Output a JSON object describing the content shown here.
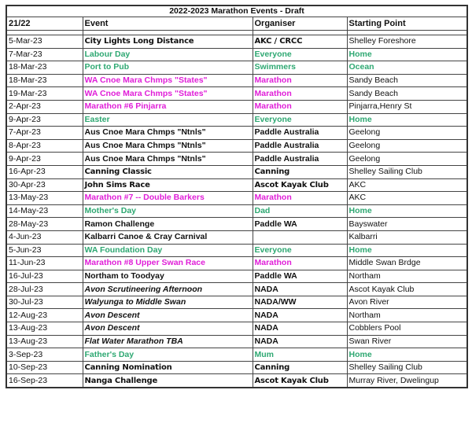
{
  "title": "2022-2023 Marathon Events - Draft",
  "headers": [
    "21/22",
    "Event",
    "Organiser",
    "Starting Point"
  ],
  "colors": {
    "holiday": "#2ea872",
    "marathon": "#e01ed8",
    "default": "#111111"
  },
  "rows": [
    {
      "date": "5-Mar-23",
      "event": "City Lights Long Distance",
      "organiser": "AKC / CRCC",
      "start": "Shelley Foreshore",
      "style": "comic"
    },
    {
      "date": "7-Mar-23",
      "event": "Labour Day",
      "organiser": "Everyone",
      "start": "Home",
      "style": "holiday"
    },
    {
      "date": "18-Mar-23",
      "event": "Port to Pub",
      "organiser": "Swimmers",
      "start": "Ocean",
      "style": "holiday"
    },
    {
      "date": "18-Mar-23",
      "event": "WA Cnoe Mara Chmps \"States\"",
      "organiser": "Marathon",
      "start": "Sandy Beach",
      "style": "marathon"
    },
    {
      "date": "19-Mar-23",
      "event": "WA Cnoe Mara Chmps \"States\"",
      "organiser": "Marathon",
      "start": "Sandy Beach",
      "style": "marathon"
    },
    {
      "date": "2-Apr-23",
      "event": "Marathon #6 Pinjarra",
      "organiser": "Marathon",
      "start": "Pinjarra,Henry St",
      "style": "marathon"
    },
    {
      "date": "9-Apr-23",
      "event": "Easter",
      "organiser": "Everyone",
      "start": "Home",
      "style": "holiday"
    },
    {
      "date": "7-Apr-23",
      "event": "Aus Cnoe Mara Chmps \"Ntnls\"",
      "organiser": "Paddle  Australia",
      "start": "Geelong",
      "style": "bold"
    },
    {
      "date": "8-Apr-23",
      "event": "Aus Cnoe Mara Chmps \"Ntnls\"",
      "organiser": "Paddle  Australia",
      "start": "Geelong",
      "style": "bold"
    },
    {
      "date": "9-Apr-23",
      "event": "Aus Cnoe Mara Chmps \"Ntnls\"",
      "organiser": "Paddle  Australia",
      "start": "Geelong",
      "style": "bold"
    },
    {
      "date": "16-Apr-23",
      "event": "Canning Classic",
      "organiser": "Canning",
      "start": "Shelley Sailing Club",
      "style": "comic"
    },
    {
      "date": "30-Apr-23",
      "event": "John Sims Race",
      "organiser": "Ascot Kayak Club",
      "start": "AKC",
      "style": "comic"
    },
    {
      "date": "13-May-23",
      "event": "Marathon #7 -- Double Barkers",
      "organiser": "Marathon",
      "start": "AKC",
      "style": "marathon"
    },
    {
      "date": "14-May-23",
      "event": "Mother's Day",
      "organiser": "Dad",
      "start": "Home",
      "style": "holiday"
    },
    {
      "date": "28-May-23",
      "event": "Ramon Challenge",
      "organiser": "Paddle WA",
      "start": "Bayswater",
      "style": "bold"
    },
    {
      "date": "4-Jun-23",
      "event": "Kalbarri Canoe & Cray Carnival",
      "organiser": "",
      "start": "Kalbarri",
      "style": "bold"
    },
    {
      "date": "5-Jun-23",
      "event": "WA Foundation Day",
      "organiser": "Everyone",
      "start": "Home",
      "style": "holiday"
    },
    {
      "date": "11-Jun-23",
      "event": "Marathon #8 Upper Swan Race",
      "organiser": "Marathon",
      "start": "Middle Swan Brdge",
      "style": "marathon"
    },
    {
      "date": "16-Jul-23",
      "event": "Northam to Toodyay",
      "organiser": "Paddle WA",
      "start": "Northam",
      "style": "bold"
    },
    {
      "date": "28-Jul-23",
      "event": "Avon Scrutineering Afternoon",
      "organiser": "NADA",
      "start": "Ascot Kayak Club",
      "style": "italic"
    },
    {
      "date": "30-Jul-23",
      "event": "Walyunga to Middle Swan",
      "organiser": "NADA/WW",
      "start": "Avon River",
      "style": "italic"
    },
    {
      "date": "12-Aug-23",
      "event": "Avon Descent",
      "organiser": "NADA",
      "start": "Northam",
      "style": "italic"
    },
    {
      "date": "13-Aug-23",
      "event": "Avon Descent",
      "organiser": "NADA",
      "start": "Cobblers Pool",
      "style": "italic"
    },
    {
      "date": "13-Aug-23",
      "event": "Flat Water Marathon TBA",
      "organiser": "NADA",
      "start": "Swan River",
      "style": "italic"
    },
    {
      "date": "3-Sep-23",
      "event": "Father's Day",
      "organiser": "Mum",
      "start": "Home",
      "style": "holiday"
    },
    {
      "date": "10-Sep-23",
      "event": "Canning Nomination",
      "organiser": "Canning",
      "start": "Shelley Sailing Club",
      "style": "comic"
    },
    {
      "date": "16-Sep-23",
      "event": "Nanga Challenge",
      "organiser": "Ascot Kayak Club",
      "start": "Murray River, Dwelingup",
      "style": "comic"
    }
  ]
}
